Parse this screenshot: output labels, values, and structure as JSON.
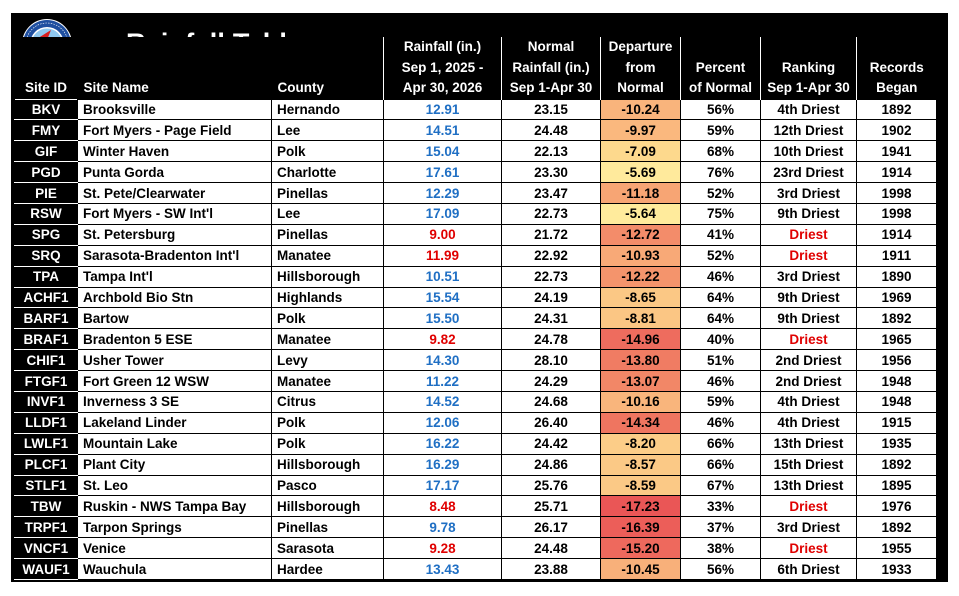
{
  "title": "Rainfall Table",
  "logo": {
    "text": "NATIONAL WEATHER SERVICE",
    "colors": {
      "blue": "#1f4fa0",
      "sky": "#8fc8f0",
      "red": "#d81e1e"
    }
  },
  "colors": {
    "dry_scale_light": "#fbe89a",
    "dry_scale_mid": "#f7a070",
    "dry_scale_dark": "#ee5a58",
    "below_avg_text": "#e00000",
    "normal_text": "#1f6fc4"
  },
  "headers": {
    "site_id": "Site ID",
    "site_name": "Site Name",
    "county": "County",
    "rainfall_line1": "Rainfall (in.)",
    "rainfall_line2": "Sep 1, 2025 -",
    "rainfall_line3": "Apr 30, 2026",
    "normal_line1": "Normal",
    "normal_line2": "Rainfall (in.)",
    "normal_line3": "Sep 1-Apr 30",
    "departure_line1": "Departure",
    "departure_line2": "from",
    "departure_line3": "Normal",
    "percent_line1": "Percent",
    "percent_line2": "of Normal",
    "ranking_line1": "Ranking",
    "ranking_line2": "Sep 1-Apr 30",
    "records_line1": "Records",
    "records_line2": "Began"
  },
  "rows": [
    {
      "id": "BKV",
      "name": "Brooksville",
      "county": "Hernando",
      "rainfall": "12.91",
      "rain_color": "blue",
      "normal": "23.15",
      "departure": "-10.24",
      "dep_color": "#f9b47c",
      "percent": "56%",
      "ranking": "4th Driest",
      "rank_red": false,
      "began": "1892"
    },
    {
      "id": "FMY",
      "name": "Fort Myers - Page Field",
      "county": "Lee",
      "rainfall": "14.51",
      "rain_color": "blue",
      "normal": "24.48",
      "departure": "-9.97",
      "dep_color": "#fab87e",
      "percent": "59%",
      "ranking": "12th Driest",
      "rank_red": false,
      "began": "1902"
    },
    {
      "id": "GIF",
      "name": "Winter Haven",
      "county": "Polk",
      "rainfall": "15.04",
      "rain_color": "blue",
      "normal": "22.13",
      "departure": "-7.09",
      "dep_color": "#fdd98d",
      "percent": "68%",
      "ranking": "10th Driest",
      "rank_red": false,
      "began": "1941"
    },
    {
      "id": "PGD",
      "name": "Punta Gorda",
      "county": "Charlotte",
      "rainfall": "17.61",
      "rain_color": "blue",
      "normal": "23.30",
      "departure": "-5.69",
      "dep_color": "#ffea9c",
      "percent": "76%",
      "ranking": "23rd Driest",
      "rank_red": false,
      "began": "1914"
    },
    {
      "id": "PIE",
      "name": "St. Pete/Clearwater",
      "county": "Pinellas",
      "rainfall": "12.29",
      "rain_color": "blue",
      "normal": "23.47",
      "departure": "-11.18",
      "dep_color": "#f7a574",
      "percent": "52%",
      "ranking": "3rd Driest",
      "rank_red": false,
      "began": "1998"
    },
    {
      "id": "RSW",
      "name": "Fort Myers - SW Int'l",
      "county": "Lee",
      "rainfall": "17.09",
      "rain_color": "blue",
      "normal": "22.73",
      "departure": "-5.64",
      "dep_color": "#ffeb9c",
      "percent": "75%",
      "ranking": "9th Driest",
      "rank_red": false,
      "began": "1998"
    },
    {
      "id": "SPG",
      "name": "St. Petersburg",
      "county": "Pinellas",
      "rainfall": "9.00",
      "rain_color": "red",
      "normal": "21.72",
      "departure": "-12.72",
      "dep_color": "#f38c6a",
      "percent": "41%",
      "ranking": "Driest",
      "rank_red": true,
      "began": "1914"
    },
    {
      "id": "SRQ",
      "name": "Sarasota-Bradenton Int'l",
      "county": "Manatee",
      "rainfall": "11.99",
      "rain_color": "red",
      "normal": "22.92",
      "departure": "-10.93",
      "dep_color": "#f8a977",
      "percent": "52%",
      "ranking": "Driest",
      "rank_red": true,
      "began": "1911"
    },
    {
      "id": "TPA",
      "name": "Tampa Int'l",
      "county": "Hillsborough",
      "rainfall": "10.51",
      "rain_color": "blue",
      "normal": "22.73",
      "departure": "-12.22",
      "dep_color": "#f4946c",
      "percent": "46%",
      "ranking": "3rd Driest",
      "rank_red": false,
      "began": "1890"
    },
    {
      "id": "ACHF1",
      "name": "Archbold Bio Stn",
      "county": "Highlands",
      "rainfall": "15.54",
      "rain_color": "blue",
      "normal": "24.19",
      "departure": "-8.65",
      "dep_color": "#fbc885",
      "percent": "64%",
      "ranking": "9th Driest",
      "rank_red": false,
      "began": "1969"
    },
    {
      "id": "BARF1",
      "name": "Bartow",
      "county": "Polk",
      "rainfall": "15.50",
      "rain_color": "blue",
      "normal": "24.31",
      "departure": "-8.81",
      "dep_color": "#fbc684",
      "percent": "64%",
      "ranking": "9th Driest",
      "rank_red": false,
      "began": "1892"
    },
    {
      "id": "BRAF1",
      "name": "Bradenton 5 ESE",
      "county": "Manatee",
      "rainfall": "9.82",
      "rain_color": "red",
      "normal": "24.78",
      "departure": "-14.96",
      "dep_color": "#ee6c5e",
      "percent": "40%",
      "ranking": "Driest",
      "rank_red": true,
      "began": "1965"
    },
    {
      "id": "CHIF1",
      "name": "Usher Tower",
      "county": "Levy",
      "rainfall": "14.30",
      "rain_color": "blue",
      "normal": "28.10",
      "departure": "-13.80",
      "dep_color": "#f07c63",
      "percent": "51%",
      "ranking": "2nd Driest",
      "rank_red": false,
      "began": "1956"
    },
    {
      "id": "FTGF1",
      "name": "Fort Green 12 WSW",
      "county": "Manatee",
      "rainfall": "11.22",
      "rain_color": "blue",
      "normal": "24.29",
      "departure": "-13.07",
      "dep_color": "#f28767",
      "percent": "46%",
      "ranking": "2nd Driest",
      "rank_red": false,
      "began": "1948"
    },
    {
      "id": "INVF1",
      "name": "Inverness 3 SE",
      "county": "Citrus",
      "rainfall": "14.52",
      "rain_color": "blue",
      "normal": "24.68",
      "departure": "-10.16",
      "dep_color": "#f9b57c",
      "percent": "59%",
      "ranking": "4th Driest",
      "rank_red": false,
      "began": "1948"
    },
    {
      "id": "LLDF1",
      "name": "Lakeland Linder",
      "county": "Polk",
      "rainfall": "12.06",
      "rain_color": "blue",
      "normal": "26.40",
      "departure": "-14.34",
      "dep_color": "#ef7560",
      "percent": "46%",
      "ranking": "4th Driest",
      "rank_red": false,
      "began": "1915"
    },
    {
      "id": "LWLF1",
      "name": "Mountain Lake",
      "county": "Polk",
      "rainfall": "16.22",
      "rain_color": "blue",
      "normal": "24.42",
      "departure": "-8.20",
      "dep_color": "#fccd88",
      "percent": "66%",
      "ranking": "13th Driest",
      "rank_red": false,
      "began": "1935"
    },
    {
      "id": "PLCF1",
      "name": "Plant City",
      "county": "Hillsborough",
      "rainfall": "16.29",
      "rain_color": "blue",
      "normal": "24.86",
      "departure": "-8.57",
      "dep_color": "#fbc986",
      "percent": "66%",
      "ranking": "15th Driest",
      "rank_red": false,
      "began": "1892"
    },
    {
      "id": "STLF1",
      "name": "St. Leo",
      "county": "Pasco",
      "rainfall": "17.17",
      "rain_color": "blue",
      "normal": "25.76",
      "departure": "-8.59",
      "dep_color": "#fbc986",
      "percent": "67%",
      "ranking": "13th Driest",
      "rank_red": false,
      "began": "1895"
    },
    {
      "id": "TBW",
      "name": "Ruskin - NWS Tampa Bay",
      "county": "Hillsborough",
      "rainfall": "8.48",
      "rain_color": "red",
      "normal": "25.71",
      "departure": "-17.23",
      "dep_color": "#ea5656",
      "percent": "33%",
      "ranking": "Driest",
      "rank_red": true,
      "began": "1976"
    },
    {
      "id": "TRPF1",
      "name": "Tarpon Springs",
      "county": "Pinellas",
      "rainfall": "9.78",
      "rain_color": "blue",
      "normal": "26.17",
      "departure": "-16.39",
      "dep_color": "#ec5e59",
      "percent": "37%",
      "ranking": "3rd Driest",
      "rank_red": false,
      "began": "1892"
    },
    {
      "id": "VNCF1",
      "name": "Venice",
      "county": "Sarasota",
      "rainfall": "9.28",
      "rain_color": "red",
      "normal": "24.48",
      "departure": "-15.20",
      "dep_color": "#ee695d",
      "percent": "38%",
      "ranking": "Driest",
      "rank_red": true,
      "began": "1955"
    },
    {
      "id": "WAUF1",
      "name": "Wauchula",
      "county": "Hardee",
      "rainfall": "13.43",
      "rain_color": "blue",
      "normal": "23.88",
      "departure": "-10.45",
      "dep_color": "#f8b07a",
      "percent": "56%",
      "ranking": "6th Driest",
      "rank_red": false,
      "began": "1933"
    }
  ]
}
